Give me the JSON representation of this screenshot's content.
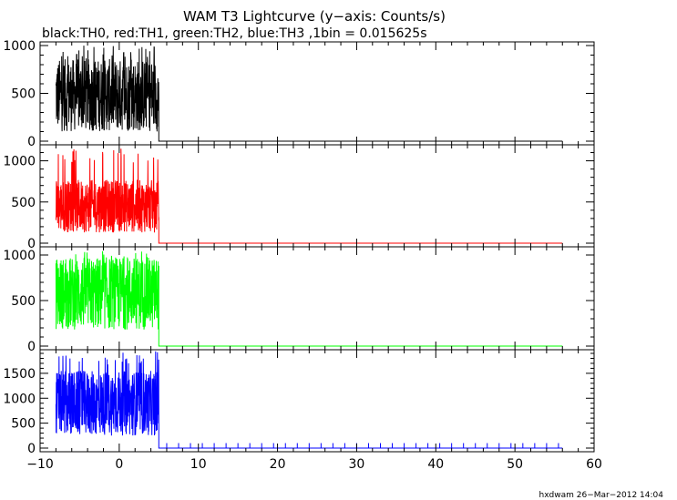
{
  "header": {
    "title": "WAM T3 Lightcurve (y−axis: Counts/s)",
    "subtitle": "black:TH0, red:TH1, green:TH2, blue:TH3 ,1bin = 0.015625s"
  },
  "footer": {
    "credit": "hxdwam 26−Mar−2012 14:04"
  },
  "chart_data": {
    "type": "line",
    "title": "WAM T3 Lightcurve (y−axis: Counts/s)",
    "subtitle": "black:TH0, red:TH1, green:TH2, blue:TH3 ,1bin = 0.015625s",
    "xlim": [
      -10,
      60
    ],
    "x_ticks": [
      -10,
      0,
      10,
      20,
      30,
      40,
      50,
      60
    ],
    "x_tick_labels": [
      "−10",
      "0",
      "10",
      "20",
      "30",
      "40",
      "50",
      "60"
    ],
    "data_x_range": [
      -8,
      56
    ],
    "burst_end_x": 5,
    "panels": [
      {
        "name": "TH0",
        "color": "#000000",
        "ylim": [
          0,
          1000
        ],
        "y_ticks": [
          0,
          500,
          1000
        ],
        "y_tick_labels": [
          "0",
          "500",
          "1000"
        ],
        "burst_range": [
          -8,
          5
        ],
        "burst_mean": 480,
        "burst_spread": 380,
        "burst_min": 30,
        "burst_max": 1000,
        "tail_level": 0
      },
      {
        "name": "TH1",
        "color": "#ff0000",
        "ylim": [
          0,
          1150
        ],
        "y_ticks": [
          0,
          500,
          1000
        ],
        "y_tick_labels": [
          "0",
          "500",
          "1000"
        ],
        "burst_range": [
          -8,
          5
        ],
        "burst_mean": 450,
        "burst_spread": 320,
        "burst_min": 40,
        "burst_max": 1150,
        "tail_level": 0
      },
      {
        "name": "TH2",
        "color": "#00ff00",
        "ylim": [
          0,
          1050
        ],
        "y_ticks": [
          0,
          500,
          1000
        ],
        "y_tick_labels": [
          "0",
          "500",
          "1000"
        ],
        "burst_range": [
          -8,
          5
        ],
        "burst_mean": 580,
        "burst_spread": 400,
        "burst_min": 50,
        "burst_max": 1050,
        "tail_level": 0
      },
      {
        "name": "TH3",
        "color": "#0000ff",
        "ylim": [
          0,
          1900
        ],
        "y_ticks": [
          0,
          500,
          1000,
          1500
        ],
        "y_tick_labels": [
          "0",
          "500",
          "1000",
          "1500"
        ],
        "burst_range": [
          -8,
          5
        ],
        "burst_mean": 900,
        "burst_spread": 650,
        "burst_min": 100,
        "burst_max": 1950,
        "tail_level": 0,
        "tail_spikes": 100
      }
    ]
  }
}
